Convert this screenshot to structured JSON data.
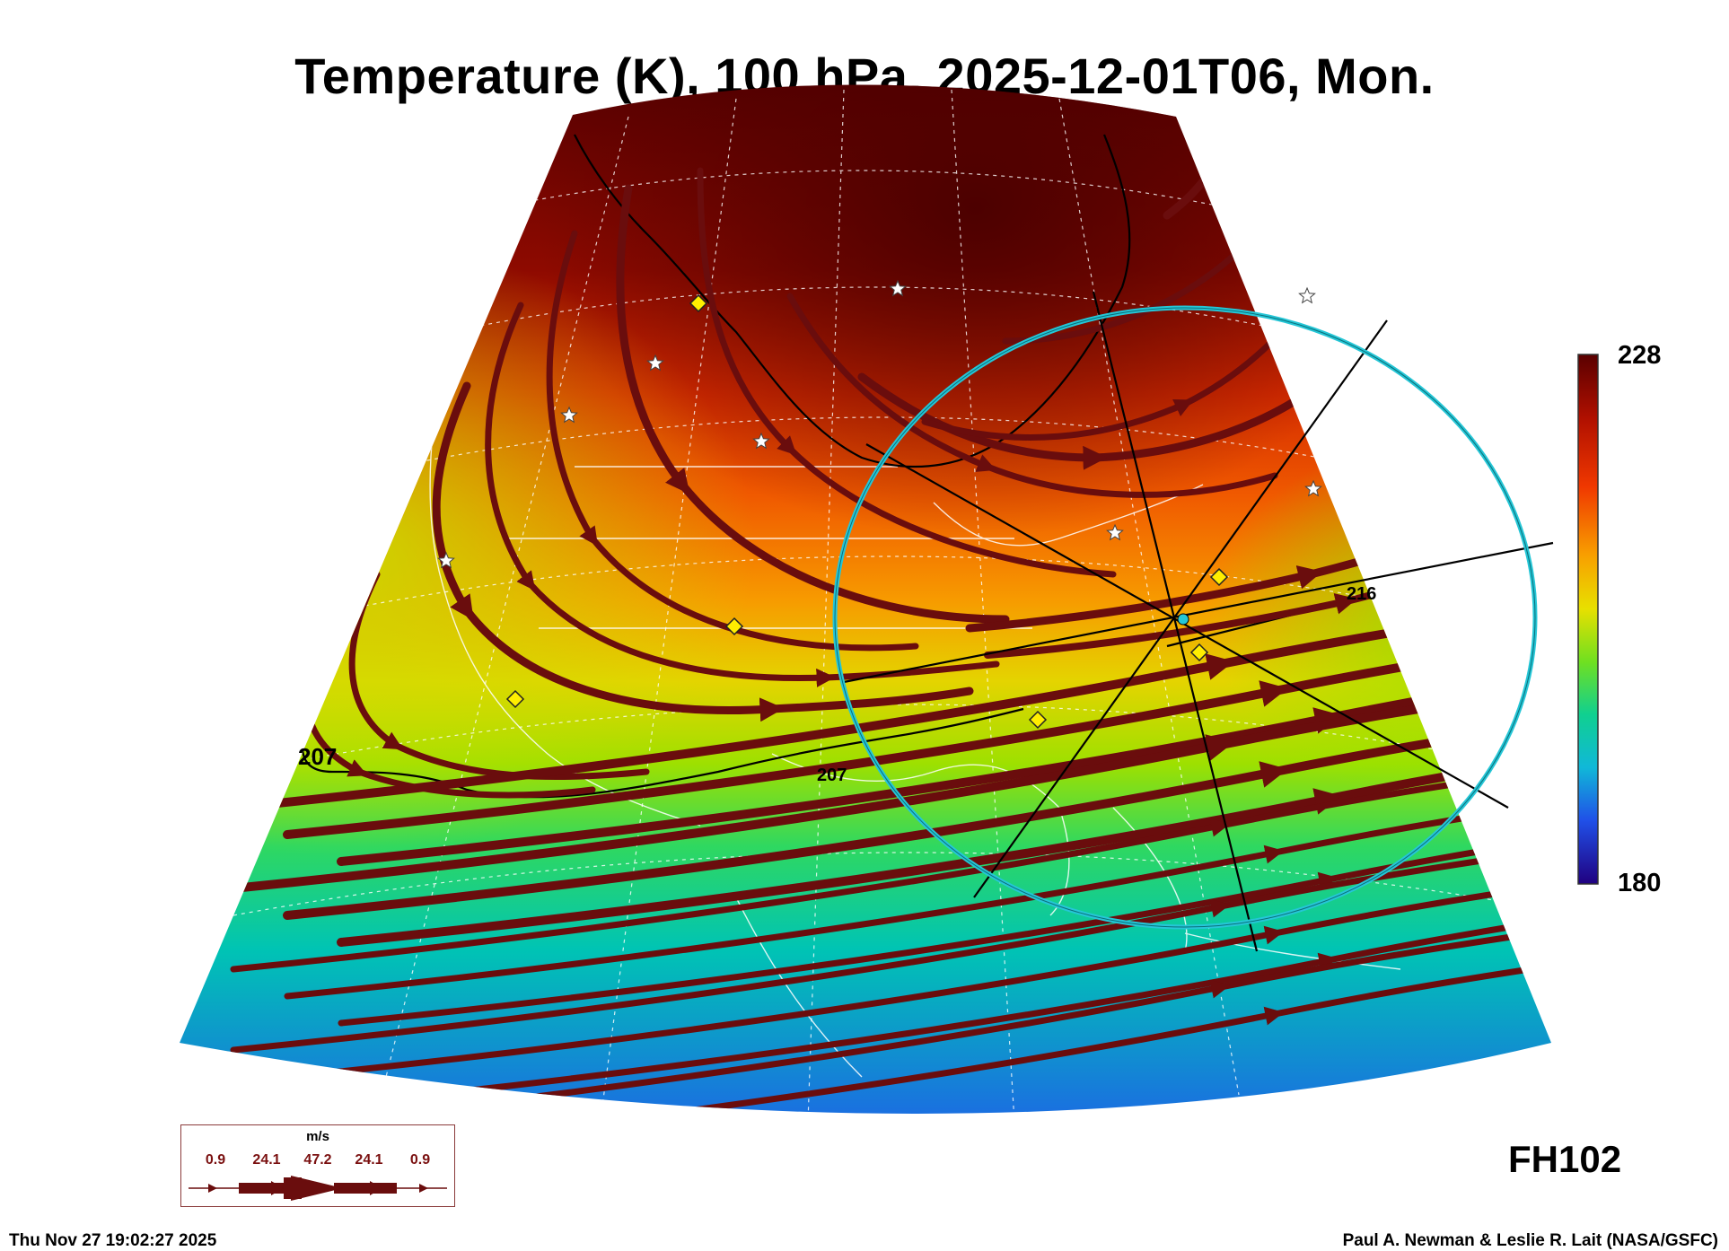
{
  "title": "Temperature (K), 100 hPa, 2025-12-01T06, Mon.",
  "colorbar": {
    "max_label": "228",
    "min_label": "180"
  },
  "contour_labels": [
    "207",
    "207",
    "216"
  ],
  "forecast_hour": "FH102",
  "footer": {
    "timestamp": "Thu Nov 27 19:02:27 2025",
    "credit": "Paul A. Newman & Leslie R. Lait (NASA/GSFC)"
  },
  "wind_legend": {
    "unit": "m/s",
    "values": [
      "0.9",
      "24.1",
      "47.2",
      "24.1",
      "0.9"
    ]
  },
  "colors": {
    "warm": "#6e0000",
    "cool": "#1e78d8",
    "streamline": "#6a0d0d",
    "ring": "#25c6d6"
  },
  "icons": [
    "star-marker-icon",
    "diamond-marker-icon",
    "cross-hair-icon"
  ]
}
